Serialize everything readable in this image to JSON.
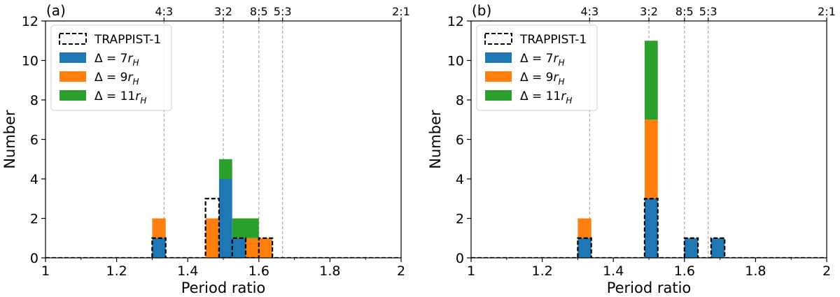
{
  "chart_data": [
    {
      "type": "bar",
      "panel_label": "(a)",
      "xlabel": "Period ratio",
      "ylabel": "Number",
      "xlim": [
        1,
        2
      ],
      "ylim": [
        0,
        12
      ],
      "xticks": [
        "1",
        "1.2",
        "1.4",
        "1.6",
        "1.8",
        "2"
      ],
      "yticks": [
        "0",
        "2",
        "4",
        "6",
        "8",
        "10",
        "12"
      ],
      "resonances": [
        {
          "label": "4:3",
          "x": 1.3333
        },
        {
          "label": "3:2",
          "x": 1.5
        },
        {
          "label": "8:5",
          "x": 1.6
        },
        {
          "label": "5:3",
          "x": 1.6667
        },
        {
          "label": "2:1",
          "x": 2.0
        }
      ],
      "bin_edges": [
        1.0,
        1.038,
        1.075,
        1.113,
        1.15,
        1.188,
        1.225,
        1.263,
        1.3,
        1.338,
        1.375,
        1.413,
        1.45,
        1.488,
        1.525,
        1.563,
        1.6,
        1.638,
        1.675,
        1.713,
        1.75,
        1.788,
        1.825,
        1.863,
        1.9,
        1.938,
        1.975,
        2.013
      ],
      "series": [
        {
          "name": "Δ = 7r_H",
          "color": "#1f77b4",
          "values": [
            0,
            0,
            0,
            0,
            0,
            0,
            0,
            0,
            1,
            0,
            0,
            0,
            0,
            4,
            1,
            0,
            0,
            0,
            0,
            0,
            0,
            0,
            0,
            0,
            0,
            0,
            0
          ]
        },
        {
          "name": "Δ = 9r_H",
          "color": "#ff7f0e",
          "values": [
            0,
            0,
            0,
            0,
            0,
            0,
            0,
            0,
            1,
            0,
            0,
            0,
            2,
            0,
            0,
            1,
            1,
            0,
            0,
            0,
            0,
            0,
            0,
            0,
            0,
            0,
            0
          ]
        },
        {
          "name": "Δ = 11r_H",
          "color": "#2ca02c",
          "values": [
            0,
            0,
            0,
            0,
            0,
            0,
            0,
            0,
            0,
            0,
            0,
            0,
            0,
            1,
            1,
            1,
            0,
            0,
            0,
            0,
            0,
            0,
            0,
            0,
            0,
            0,
            0
          ]
        }
      ],
      "trappist_outline": {
        "name": "TRAPPIST-1",
        "values": [
          0,
          0,
          0,
          0,
          0,
          0,
          0,
          0,
          1,
          0,
          0,
          0,
          3,
          0,
          1,
          0,
          1,
          0,
          0,
          0,
          0,
          0,
          0,
          0,
          0,
          0,
          0
        ]
      },
      "legend": {
        "position": "upper-left",
        "entries": [
          {
            "pre": "TRAPPIST-1",
            "style": "outline"
          },
          {
            "pre": "Δ = 7",
            "it": "r",
            "sub": "H",
            "style": "fill",
            "color": "#1f77b4"
          },
          {
            "pre": "Δ = 9",
            "it": "r",
            "sub": "H",
            "style": "fill",
            "color": "#ff7f0e"
          },
          {
            "pre": "Δ = 11",
            "it": "r",
            "sub": "H",
            "style": "fill",
            "color": "#2ca02c"
          }
        ]
      }
    },
    {
      "type": "bar",
      "panel_label": "(b)",
      "xlabel": "Period ratio",
      "ylabel": "Number",
      "xlim": [
        1,
        2
      ],
      "ylim": [
        0,
        12
      ],
      "xticks": [
        "1",
        "1.2",
        "1.4",
        "1.6",
        "1.8",
        "2"
      ],
      "yticks": [
        "0",
        "2",
        "4",
        "6",
        "8",
        "10",
        "12"
      ],
      "resonances": [
        {
          "label": "4:3",
          "x": 1.3333
        },
        {
          "label": "3:2",
          "x": 1.5
        },
        {
          "label": "8:5",
          "x": 1.6
        },
        {
          "label": "5:3",
          "x": 1.6667
        },
        {
          "label": "2:1",
          "x": 2.0
        }
      ],
      "bin_edges": [
        1.0,
        1.038,
        1.075,
        1.113,
        1.15,
        1.188,
        1.225,
        1.263,
        1.3,
        1.338,
        1.375,
        1.413,
        1.45,
        1.488,
        1.525,
        1.563,
        1.6,
        1.638,
        1.675,
        1.713,
        1.75,
        1.788,
        1.825,
        1.863,
        1.9,
        1.938,
        1.975,
        2.013
      ],
      "series": [
        {
          "name": "Δ = 7r_H",
          "color": "#1f77b4",
          "values": [
            0,
            0,
            0,
            0,
            0,
            0,
            0,
            0,
            1,
            0,
            0,
            0,
            0,
            3,
            0,
            0,
            1,
            0,
            1,
            0,
            0,
            0,
            0,
            0,
            0,
            0,
            0
          ]
        },
        {
          "name": "Δ = 9r_H",
          "color": "#ff7f0e",
          "values": [
            0,
            0,
            0,
            0,
            0,
            0,
            0,
            0,
            1,
            0,
            0,
            0,
            0,
            4,
            0,
            0,
            0,
            0,
            0,
            0,
            0,
            0,
            0,
            0,
            0,
            0,
            0
          ]
        },
        {
          "name": "Δ = 11r_H",
          "color": "#2ca02c",
          "values": [
            0,
            0,
            0,
            0,
            0,
            0,
            0,
            0,
            0,
            0,
            0,
            0,
            0,
            4,
            0,
            0,
            0,
            0,
            0,
            0,
            0,
            0,
            0,
            0,
            0,
            0,
            0
          ]
        }
      ],
      "trappist_outline": {
        "name": "TRAPPIST-1",
        "values": [
          0,
          0,
          0,
          0,
          0,
          0,
          0,
          0,
          1,
          0,
          0,
          0,
          0,
          3,
          0,
          0,
          1,
          0,
          1,
          0,
          0,
          0,
          0,
          0,
          0,
          0,
          0
        ]
      },
      "legend": {
        "position": "upper-left",
        "entries": [
          {
            "pre": "TRAPPIST-1",
            "style": "outline"
          },
          {
            "pre": "Δ = 7",
            "it": "r",
            "sub": "H",
            "style": "fill",
            "color": "#1f77b4"
          },
          {
            "pre": "Δ = 9",
            "it": "r",
            "sub": "H",
            "style": "fill",
            "color": "#ff7f0e"
          },
          {
            "pre": "Δ = 11",
            "it": "r",
            "sub": "H",
            "style": "fill",
            "color": "#2ca02c"
          }
        ]
      }
    }
  ]
}
